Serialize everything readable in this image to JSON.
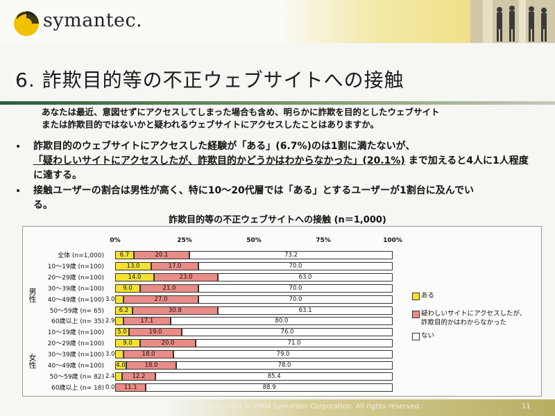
{
  "header": {
    "logo_text": "symantec."
  },
  "title": "6. 詐欺目的等の不正ウェブサイトへの接触",
  "question": [
    "あなたは最近、意図せずにアクセスしてしまった場合も含め、明らかに詐欺を目的としたウェブサイト",
    "または詐欺目的ではないかと疑われるウェブサイトにアクセスしたことはありますか。"
  ],
  "bullets": [
    {
      "symbol": "•",
      "parts": [
        {
          "text": "詐欺目的のウェブサイトにアクセスした経験が「ある」(6.7%)のは1割に満たないが、",
          "u": false
        },
        {
          "text": "「疑わしいサイトにアクセスしたが、詐欺目的かどうかはわからなかった」(20.1%)",
          "u": true
        },
        {
          "text": "まで加えると4人に1人程度に達する。",
          "u": false
        }
      ]
    },
    {
      "symbol": "•",
      "parts": [
        {
          "text": "接触ユーザーの割合は男性が高く、特に10～20代層では「ある」とするユーザーが1割台に及んでいる。",
          "u": false
        }
      ]
    }
  ],
  "chart_data": {
    "type": "bar",
    "orientation": "horizontal-stacked-100",
    "title": "詐欺目的等の不正ウェブサイトへの接触 (n＝1,000)",
    "ticks": [
      "0%",
      "25%",
      "50%",
      "75%",
      "100%"
    ],
    "xlim": [
      0,
      100
    ],
    "groups": [
      {
        "label": "男性",
        "rows": [
          1,
          7
        ]
      },
      {
        "label": "女性",
        "rows": [
          7,
          13
        ]
      }
    ],
    "categories": [
      "全体 (n=1,000)",
      "10～19歳 (n=100)",
      "20～29歳 (n=100)",
      "30～39歳 (n=100)",
      "40～49歳 (n=100)",
      "50～59歳 (n= 65)",
      "60歳以上 (n= 35)",
      "10～19歳 (n=100)",
      "20～29歳 (n=100)",
      "30～39歳 (n=100)",
      "40～49歳 (n=100)",
      "50～59歳 (n= 82)",
      "60歳以上 (n= 18)"
    ],
    "series": [
      {
        "name": "ある",
        "color": "#f4e232",
        "values": [
          6.7,
          13.0,
          14.0,
          9.0,
          3.0,
          6.2,
          2.9,
          5.0,
          9.0,
          3.0,
          4.0,
          2.4,
          0.0
        ],
        "labels": [
          "6.7",
          "13.0",
          "14.0",
          "9.0",
          "3.0",
          "6.2",
          "2.9",
          "5.0",
          "9.0",
          "3.0",
          "4.0",
          "2.4",
          "0.0"
        ]
      },
      {
        "name": "疑わしいサイトにアクセスしたが、詐欺目的かはわからなかった",
        "color": "#e98b86",
        "values": [
          20.1,
          17.0,
          23.0,
          21.0,
          27.0,
          30.8,
          17.1,
          19.0,
          20.0,
          18.0,
          18.0,
          12.2,
          11.1
        ],
        "labels": [
          "20.1",
          "17.0",
          "23.0",
          "21.0",
          "27.0",
          "30.8",
          "17.1",
          "19.0",
          "20.0",
          "18.0",
          "18.0",
          "12.2",
          "11.1"
        ]
      },
      {
        "name": "ない",
        "color": "#ffffff",
        "values": [
          73.2,
          70.0,
          63.0,
          70.0,
          70.0,
          63.1,
          80.0,
          76.0,
          71.0,
          79.0,
          78.0,
          85.4,
          88.9
        ],
        "labels": [
          "73.2",
          "70.0",
          "63.0",
          "70.0",
          "70.0",
          "63.1",
          "80.0",
          "76.0",
          "71.0",
          "79.0",
          "78.0",
          "85.4",
          "88.9"
        ]
      }
    ],
    "legend_labels": [
      "ある",
      "疑わしいサイトにアクセスしたが、",
      "詐欺目的かはわからなかった",
      "ない"
    ],
    "legend": "right"
  },
  "footer": {
    "copyright": "Copyright © 2004 Symantec Corporation. All rights reserved.",
    "page": "11"
  }
}
